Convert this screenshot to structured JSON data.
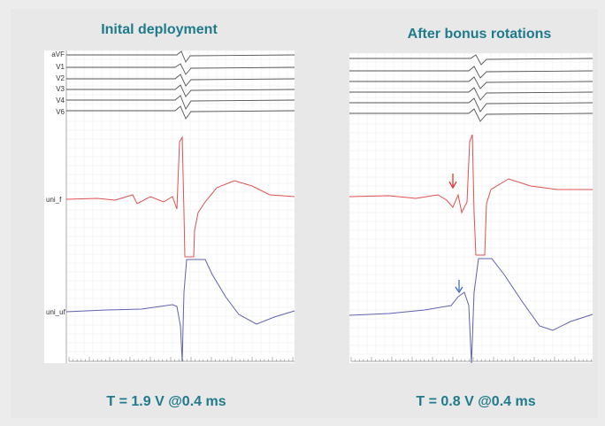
{
  "panels": [
    {
      "title": "Inital deployment",
      "caption": "T = 1.9 V @0.4 ms",
      "leads": [
        "aVF",
        "V1",
        "V2",
        "V3",
        "V4",
        "V6"
      ],
      "unipolar": [
        "uni_f",
        "uni_uf"
      ]
    },
    {
      "title": "After bonus rotations",
      "caption": "T = 0.8 V @0.4 ms"
    }
  ]
}
